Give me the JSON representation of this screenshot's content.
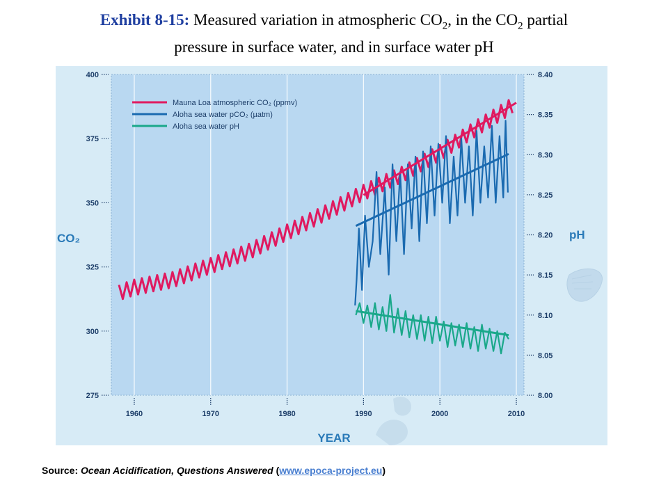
{
  "slide": {
    "label": "Exhibit 8-15:",
    "title_part1": "Measured variation in atmospheric CO",
    "sub1": "2",
    "title_part2": ", in the CO",
    "sub2": "2",
    "title_part3": " partial",
    "title_line2": "pressure in surface water, and in surface water pH"
  },
  "source": {
    "prefix": "Source:",
    "work": "Ocean Acidification, Questions Answered",
    "open": "(",
    "link": "www.epoca-project.eu",
    "close": ")"
  },
  "colors": {
    "panel_bg": "#d7ebf6",
    "plot_bg": "#b9d8f1",
    "mauna_loa": "#e0195f",
    "pco2": "#1a6ab0",
    "ph": "#1aa88a",
    "axis_text": "#1d3e69",
    "axis_title": "#2a7ab8"
  },
  "chart_data": {
    "type": "line",
    "xlabel": "YEAR",
    "ylabel_left": "CO₂",
    "ylabel_right": "pH",
    "xlim": [
      1957,
      2011
    ],
    "ylim_left": [
      275,
      400
    ],
    "ylim_right": [
      8.0,
      8.4
    ],
    "x_ticks": [
      "1960",
      "1970",
      "1980",
      "1990",
      "2000",
      "2010"
    ],
    "y_ticks_left": [
      "275",
      "300",
      "325",
      "350",
      "375",
      "400"
    ],
    "y_ticks_right": [
      "8.00",
      "8.05",
      "8.10",
      "8.15",
      "8.20",
      "8.25",
      "8.30",
      "8.35",
      "8.40"
    ],
    "grid": "vertical dashed lines at decades",
    "legend_position": "top-left",
    "series": [
      {
        "name": "Mauna Loa atmospheric CO₂ (ppmv)",
        "axis": "left",
        "annual_means": [
          [
            1958,
            315
          ],
          [
            1960,
            317
          ],
          [
            1965,
            320
          ],
          [
            1970,
            325.5
          ],
          [
            1975,
            331
          ],
          [
            1980,
            338.5
          ],
          [
            1985,
            346
          ],
          [
            1990,
            354
          ],
          [
            1995,
            361
          ],
          [
            2000,
            369.5
          ],
          [
            2005,
            379.5
          ],
          [
            2009,
            387
          ]
        ],
        "seasonal_amplitude": 3,
        "trend": [
          [
            1990,
            353
          ],
          [
            2010,
            389
          ]
        ]
      },
      {
        "name": "Aloha sea water pCO₂ (µatm)",
        "axis": "left",
        "range": [
          308,
          382
        ],
        "approx_points": [
          [
            1988.9,
            310
          ],
          [
            1989.1,
            320
          ],
          [
            1989.4,
            340
          ],
          [
            1989.8,
            316
          ],
          [
            1990.2,
            345
          ],
          [
            1990.7,
            325
          ],
          [
            1991.2,
            335
          ],
          [
            1991.7,
            362
          ],
          [
            1992.2,
            330
          ],
          [
            1992.8,
            356
          ],
          [
            1993.3,
            322
          ],
          [
            1993.8,
            365
          ],
          [
            1994.3,
            335
          ],
          [
            1994.8,
            362
          ],
          [
            1995.3,
            330
          ],
          [
            1995.8,
            365
          ],
          [
            1996.3,
            340
          ],
          [
            1996.8,
            368
          ],
          [
            1997.3,
            335
          ],
          [
            1997.8,
            370
          ],
          [
            1998.3,
            342
          ],
          [
            1998.8,
            372
          ],
          [
            1999.3,
            345
          ],
          [
            1999.8,
            373
          ],
          [
            2000.3,
            350
          ],
          [
            2000.8,
            376
          ],
          [
            2001.3,
            342
          ],
          [
            2001.8,
            368
          ],
          [
            2002.3,
            345
          ],
          [
            2002.8,
            375
          ],
          [
            2003.3,
            350
          ],
          [
            2003.8,
            372
          ],
          [
            2004.3,
            345
          ],
          [
            2004.8,
            378
          ],
          [
            2005.3,
            350
          ],
          [
            2005.8,
            372
          ],
          [
            2006.3,
            352
          ],
          [
            2006.8,
            380
          ],
          [
            2007.3,
            350
          ],
          [
            2007.8,
            376
          ],
          [
            2008.3,
            352
          ],
          [
            2008.6,
            382
          ],
          [
            2008.9,
            354
          ]
        ],
        "trend": [
          [
            1989,
            341
          ],
          [
            2009,
            369
          ]
        ]
      },
      {
        "name": "Aloha sea water pH",
        "axis": "right",
        "range": [
          8.05,
          8.13
        ],
        "approx_points": [
          [
            1989.0,
            8.1
          ],
          [
            1989.5,
            8.115
          ],
          [
            1990.0,
            8.09
          ],
          [
            1990.5,
            8.112
          ],
          [
            1991.0,
            8.085
          ],
          [
            1991.5,
            8.115
          ],
          [
            1992.0,
            8.082
          ],
          [
            1992.5,
            8.11
          ],
          [
            1993.0,
            8.08
          ],
          [
            1993.5,
            8.125
          ],
          [
            1994.0,
            8.078
          ],
          [
            1994.5,
            8.108
          ],
          [
            1995.0,
            8.075
          ],
          [
            1995.5,
            8.105
          ],
          [
            1996.0,
            8.072
          ],
          [
            1996.5,
            8.1
          ],
          [
            1997.0,
            8.07
          ],
          [
            1997.5,
            8.1
          ],
          [
            1998.0,
            8.068
          ],
          [
            1998.5,
            8.098
          ],
          [
            1999.0,
            8.065
          ],
          [
            1999.5,
            8.098
          ],
          [
            2000.0,
            8.068
          ],
          [
            2000.5,
            8.092
          ],
          [
            2001.0,
            8.06
          ],
          [
            2001.5,
            8.09
          ],
          [
            2002.0,
            8.062
          ],
          [
            2002.5,
            8.088
          ],
          [
            2003.0,
            8.06
          ],
          [
            2003.5,
            8.09
          ],
          [
            2004.0,
            8.058
          ],
          [
            2004.5,
            8.085
          ],
          [
            2005.0,
            8.055
          ],
          [
            2005.5,
            8.088
          ],
          [
            2006.0,
            8.058
          ],
          [
            2006.5,
            8.083
          ],
          [
            2007.0,
            8.055
          ],
          [
            2007.5,
            8.08
          ],
          [
            2008.0,
            8.052
          ],
          [
            2008.5,
            8.078
          ],
          [
            2009.0,
            8.07
          ]
        ],
        "trend": [
          [
            1989,
            8.105
          ],
          [
            2009,
            8.075
          ]
        ]
      }
    ]
  }
}
